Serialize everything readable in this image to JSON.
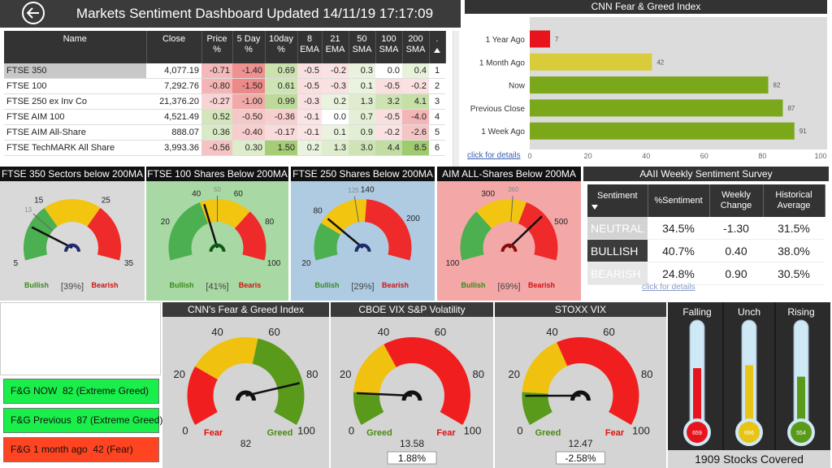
{
  "header": {
    "title": "Markets Sentiment Dashboard Updated 14/11/19 17:17:09"
  },
  "index_table": {
    "columns": [
      "Name",
      "Close",
      "Price %",
      "5 Day %",
      "10day %",
      "8 EMA",
      "21 EMA",
      "50 SMA",
      "100 SMA",
      "200 SMA",
      "."
    ],
    "rows": [
      [
        "FTSE 350",
        "4,077.19",
        "-0.71",
        "-1.40",
        "0.69",
        "-0.5",
        "-0.2",
        "0.3",
        "0.0",
        "0.4",
        "1"
      ],
      [
        "FTSE 100",
        "7,292.76",
        "-0.80",
        "-1.50",
        "0.61",
        "-0.5",
        "-0.3",
        "0.1",
        "-0.5",
        "-0.2",
        "2"
      ],
      [
        "FTSE 250 ex Inv Co",
        "21,376.20",
        "-0.27",
        "-1.00",
        "0.99",
        "-0.3",
        "0.2",
        "1.3",
        "3.2",
        "4.1",
        "3"
      ],
      [
        "FTSE AIM 100",
        "4,521.49",
        "0.52",
        "-0.50",
        "-0.36",
        "-0.1",
        "0.0",
        "0.7",
        "-0.5",
        "-4.0",
        "4"
      ],
      [
        "FTSE AIM All-Share",
        "888.07",
        "0.36",
        "-0.40",
        "-0.17",
        "-0.1",
        "0.1",
        "0.9",
        "-0.2",
        "-2.6",
        "5"
      ],
      [
        "FTSE TechMARK All Share",
        "3,993.36",
        "-0.56",
        "0.30",
        "1.50",
        "0.2",
        "1.3",
        "3.0",
        "4.4",
        "8.5",
        "6"
      ]
    ]
  },
  "fear_greed_bars": {
    "type": "bar",
    "title": "CNN Fear & Greed Index",
    "categories": [
      "1 Year Ago",
      "1 Month Ago",
      "Now",
      "Previous Close",
      "1 Week Ago"
    ],
    "values": [
      7,
      42,
      82,
      87,
      91
    ],
    "colors": [
      "#e8141d",
      "#d8cc3a",
      "#7aa81a",
      "#7aa81a",
      "#7aa81a"
    ],
    "xlim": [
      0,
      100
    ],
    "xticks": [
      0,
      20,
      40,
      60,
      80,
      100
    ],
    "link": "click for details"
  },
  "breadth_gauges": [
    {
      "title": "FTSE 350 Sectors below 200MA",
      "background": "#d9d9d9",
      "range": [
        5,
        35
      ],
      "ticks": [
        5,
        15,
        25,
        35
      ],
      "target": 13,
      "value": 11,
      "bands": [
        {
          "to": 15,
          "color": "#4caf50"
        },
        {
          "to": 25,
          "color": "#f2c511"
        },
        {
          "to": 35,
          "color": "#ee2a2a"
        }
      ],
      "hub_color": "#1f2a6b",
      "percent": "[39%]",
      "low_label": "Bullish",
      "high_label": "Bearish"
    },
    {
      "title": "FTSE 100  Shares Below 200MA",
      "background": "#a8d8a4",
      "range": [
        0,
        100
      ],
      "ticks": [
        20,
        40,
        60,
        80,
        100
      ],
      "target": 50,
      "value": 42,
      "bands": [
        {
          "to": 40,
          "color": "#4caf50"
        },
        {
          "to": 70,
          "color": "#f2c511"
        },
        {
          "to": 100,
          "color": "#ee2a2a"
        }
      ],
      "hub_color": "#0c5a12",
      "percent": "[41%]",
      "low_label": "Bullish",
      "high_label": "Bearis"
    },
    {
      "title": "FTSE 250 Shares Below 200MA",
      "background": "#aecbe2",
      "range": [
        20,
        250
      ],
      "ticks": [
        20,
        80,
        140,
        200
      ],
      "target": 125,
      "value": 80,
      "bands": [
        {
          "to": 70,
          "color": "#4caf50"
        },
        {
          "to": 140,
          "color": "#f2c511"
        },
        {
          "to": 250,
          "color": "#ee2a2a"
        }
      ],
      "hub_color": "#1f2a6b",
      "percent": "[29%]",
      "low_label": "Bullish",
      "high_label": "Bearish"
    },
    {
      "title": "AIM ALL-Shares Below 200MA",
      "background": "#f4a7a7",
      "range": [
        100,
        600
      ],
      "ticks": [
        100,
        300,
        500
      ],
      "target": 360,
      "value": 460,
      "bands": [
        {
          "to": 250,
          "color": "#4caf50"
        },
        {
          "to": 400,
          "color": "#f2c511"
        },
        {
          "to": 600,
          "color": "#ee2a2a"
        }
      ],
      "hub_color": "#8a0d0d",
      "percent": "[69%]",
      "low_label": "Bullish",
      "high_label": "Bearish"
    }
  ],
  "aaii_survey": {
    "title": "AAII Weekly Sentiment Survey",
    "columns": [
      "Sentiment",
      "%Sentiment",
      "Weekly Change",
      "Historical Average"
    ],
    "rows": [
      [
        "NEUTRAL",
        "34.5%",
        "-1.30",
        "31.5%"
      ],
      [
        "BULLISH",
        "40.7%",
        "0.40",
        "38.0%"
      ],
      [
        "BEARISH",
        "24.8%",
        "0.90",
        "30.5%"
      ]
    ],
    "row_colors": [
      "#d3d3d3",
      "#3c3c3c",
      "#e6e6e6"
    ],
    "link": "click for details"
  },
  "status_boxes": [
    {
      "text": "F&G NOW  82 (Extreme Greed)",
      "color": "#19ee4a"
    },
    {
      "text": "F&G Previous  87 (Extreme Greed)",
      "color": "#19ee4a"
    },
    {
      "text": "F&G 1 month ago  42 (Fear)",
      "color": "#ff4421"
    }
  ],
  "volatility_gauges": [
    {
      "title": "CNN's Fear & Greed Index",
      "range": [
        0,
        100
      ],
      "ticks": [
        0,
        20,
        40,
        60,
        80,
        100
      ],
      "value": 82,
      "hub_color": "#111111",
      "bands": [
        {
          "to": 25,
          "color": "#f01e1e"
        },
        {
          "to": 55,
          "color": "#f0c20f"
        },
        {
          "to": 100,
          "color": "#5a9a1a"
        }
      ],
      "low_label": {
        "text": "Fear",
        "color": "#e01010"
      },
      "high_label": {
        "text": "Greed",
        "color": "#4a8a10"
      }
    },
    {
      "title": "CBOE VIX S&P Volatility",
      "range": [
        0,
        100
      ],
      "ticks": [
        0,
        20,
        40,
        60,
        80,
        100
      ],
      "value": 13.58,
      "change": "1.88%",
      "hub_color": "#111111",
      "bands": [
        {
          "to": 14,
          "color": "#5a9a1a"
        },
        {
          "to": 38,
          "color": "#f0c20f"
        },
        {
          "to": 100,
          "color": "#f01e1e"
        }
      ],
      "low_label": {
        "text": "Greed",
        "color": "#4a8a10"
      },
      "high_label": {
        "text": "Fear",
        "color": "#e01010"
      }
    },
    {
      "title": "STOXX VIX",
      "range": [
        0,
        100
      ],
      "ticks": [
        0,
        20,
        40,
        60,
        80,
        100
      ],
      "value": 12.47,
      "change": "-2.58%",
      "hub_color": "#111111",
      "bands": [
        {
          "to": 14,
          "color": "#5a9a1a"
        },
        {
          "to": 40,
          "color": "#f0c20f"
        },
        {
          "to": 100,
          "color": "#f01e1e"
        }
      ],
      "low_label": {
        "text": "Greed",
        "color": "#4a8a10"
      },
      "high_label": {
        "text": "Fear",
        "color": "#e01010"
      }
    }
  ],
  "thermometers": {
    "items": [
      {
        "label": "Falling",
        "value": 659,
        "color": "#e8141d"
      },
      {
        "label": "Unch",
        "value": 696,
        "color": "#e8c414"
      },
      {
        "label": "Rising",
        "value": 554,
        "color": "#5a9a1a"
      }
    ],
    "caption": "1909 Stocks Covered"
  }
}
